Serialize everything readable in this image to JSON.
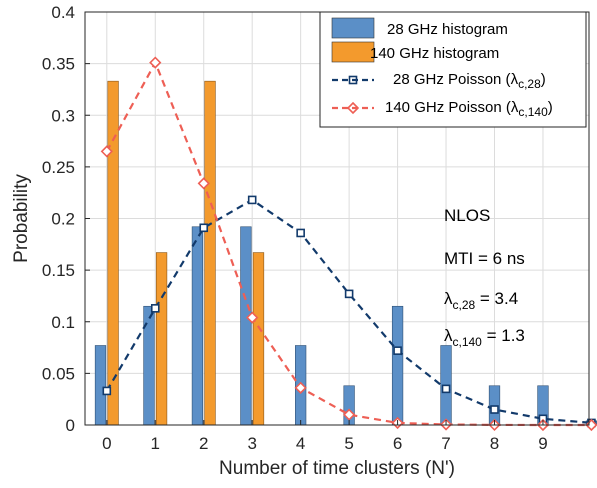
{
  "chart_data": {
    "type": "bar",
    "xlabel": "Number of time clusters (N')",
    "ylabel": "Probability",
    "xlim": [
      -0.45,
      9.95
    ],
    "ylim": [
      0,
      0.4
    ],
    "xticks": [
      0,
      1,
      2,
      3,
      4,
      5,
      6,
      7,
      8,
      9
    ],
    "yticks": [
      0,
      0.05,
      0.1,
      0.15,
      0.2,
      0.25,
      0.3,
      0.35,
      0.4
    ],
    "ytick_labels": [
      "0",
      "0.05",
      "0.1",
      "0.15",
      "0.2",
      "0.25",
      "0.3",
      "0.35",
      "0.4"
    ],
    "grid": true,
    "legend_position": "top-right",
    "series": [
      {
        "name": "28 GHz histogram",
        "kind": "bar",
        "color": "#5b8fc7",
        "x": [
          0,
          1,
          2,
          3,
          4,
          5,
          6,
          7,
          8,
          9,
          10
        ],
        "values": [
          0.077,
          0.115,
          0.192,
          0.192,
          0.077,
          0.038,
          0.115,
          0.077,
          0.038,
          0.038,
          0.004
        ]
      },
      {
        "name": "140 GHz histogram",
        "kind": "bar",
        "color": "#f39a2d",
        "x": [
          0,
          1,
          2,
          3
        ],
        "values": [
          0.333,
          0.167,
          0.333,
          0.167
        ]
      },
      {
        "name": "28 GHz Poisson",
        "legend_lambda": "c,28",
        "kind": "line",
        "marker": "square",
        "color": "#123a6b",
        "x": [
          0,
          1,
          2,
          3,
          4,
          5,
          6,
          7,
          8,
          9,
          10
        ],
        "values": [
          0.033,
          0.113,
          0.191,
          0.218,
          0.186,
          0.127,
          0.072,
          0.035,
          0.015,
          0.006,
          0.002
        ]
      },
      {
        "name": "140 GHz Poisson",
        "legend_lambda": "c,140",
        "kind": "line",
        "marker": "diamond",
        "color": "#ee5f55",
        "x": [
          0,
          1,
          2,
          3,
          4,
          5,
          6,
          7,
          8,
          9,
          10
        ],
        "values": [
          0.265,
          0.351,
          0.234,
          0.104,
          0.036,
          0.01,
          0.002,
          0.0005,
          0.0001,
          0.0,
          0.0
        ]
      }
    ],
    "annotations": {
      "env": "NLOS",
      "mti": "MTI = 6 ns",
      "lambda28_sub": "c,28",
      "lambda28_val": " = 3.4",
      "lambda140_sub": "c,140",
      "lambda140_val": " = 1.3",
      "lambda_symbol": "λ"
    }
  }
}
